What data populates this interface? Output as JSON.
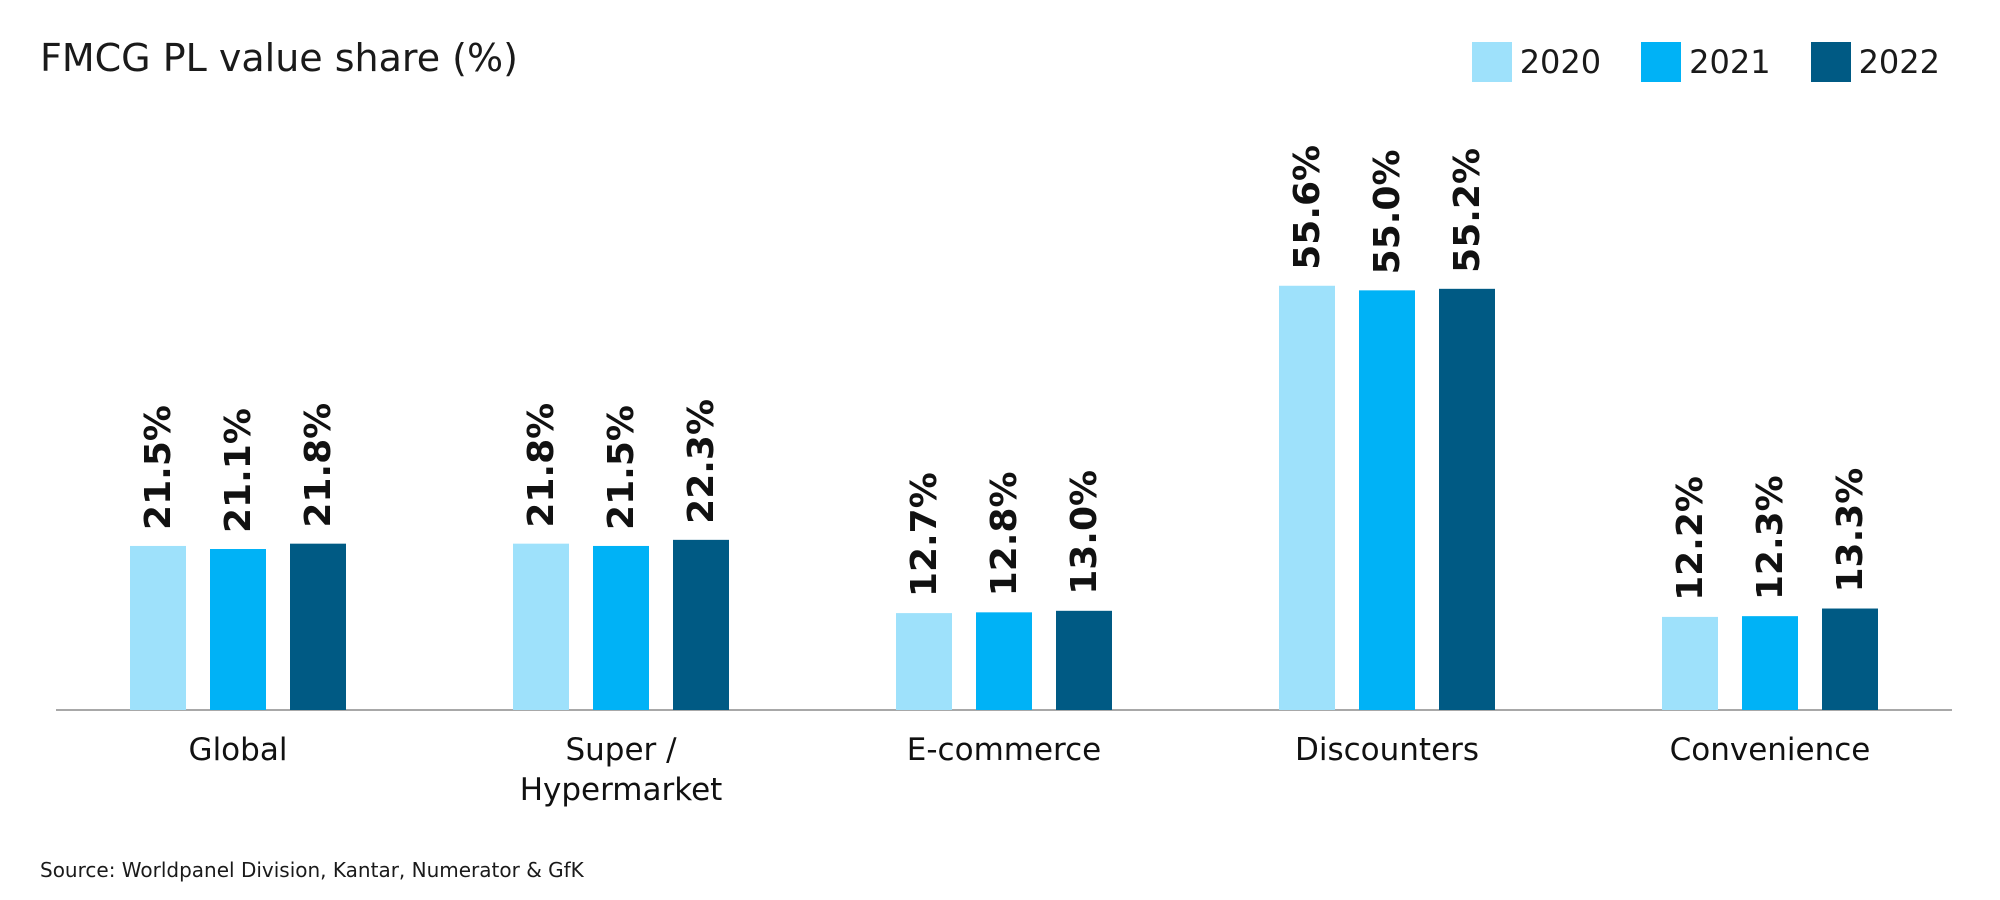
{
  "title": "FMCG PL value share (%)",
  "source": "Source: Worldpanel Division, Kantar, Numerator & GfK",
  "legend": [
    {
      "label": "2020",
      "color": "#9ee1fb"
    },
    {
      "label": "2021",
      "color": "#00b2f6"
    },
    {
      "label": "2022",
      "color": "#005a84"
    }
  ],
  "chart_data": {
    "type": "bar",
    "title": "FMCG PL value share (%)",
    "categories": [
      [
        "Global"
      ],
      [
        "Super /",
        "Hypermarket"
      ],
      [
        "E-commerce"
      ],
      [
        "Discounters"
      ],
      [
        "Convenience"
      ]
    ],
    "series": [
      {
        "name": "2020",
        "color": "#9ee1fb",
        "values": [
          21.5,
          21.8,
          12.7,
          55.6,
          12.2
        ],
        "labels": [
          "21.5%",
          "21.8%",
          "12.7%",
          "55.6%",
          "12.2%"
        ]
      },
      {
        "name": "2021",
        "color": "#00b2f6",
        "values": [
          21.1,
          21.5,
          12.8,
          55.0,
          12.3
        ],
        "labels": [
          "21.1%",
          "21.5%",
          "12.8%",
          "55.0%",
          "12.3%"
        ]
      },
      {
        "name": "2022",
        "color": "#005a84",
        "values": [
          21.8,
          22.3,
          13.0,
          55.2,
          13.3
        ],
        "labels": [
          "21.8%",
          "22.3%",
          "13.0%",
          "55.2%",
          "13.3%"
        ]
      }
    ],
    "ylim": [
      0,
      100
    ],
    "grid": false,
    "legend_position": "top-right"
  }
}
